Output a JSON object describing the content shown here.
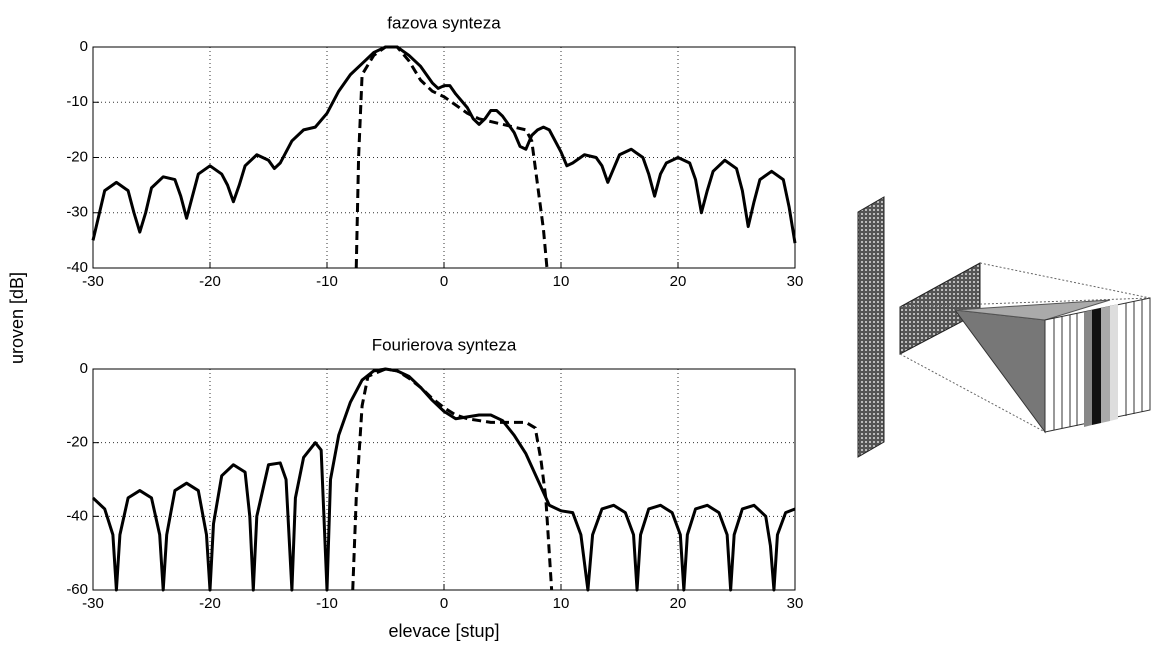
{
  "chart_data": [
    {
      "type": "line",
      "title": "fazova synteza",
      "ylabel": "uroven [dB]",
      "xlim": [
        -30,
        30
      ],
      "ylim": [
        -40,
        0
      ],
      "xticks": [
        -30,
        -20,
        -10,
        0,
        10,
        20,
        30
      ],
      "yticks": [
        -40,
        -30,
        -20,
        -10,
        0
      ],
      "grid": true,
      "series": [
        {
          "color": "#000000",
          "dash": false,
          "x": [
            -30,
            -29,
            -28,
            -27,
            -26.5,
            -26,
            -25.5,
            -25,
            -24,
            -23,
            -22.5,
            -22,
            -21.5,
            -21,
            -20,
            -19,
            -18.5,
            -18,
            -17.5,
            -17,
            -16,
            -15,
            -14.5,
            -14,
            -13,
            -12,
            -11,
            -10,
            -9,
            -8,
            -7,
            -6,
            -5,
            -4,
            -3,
            -2,
            -1,
            -0.5,
            0,
            0.5,
            1,
            2,
            2.5,
            3,
            3.5,
            4,
            4.5,
            5,
            6,
            6.5,
            7,
            7.5,
            8,
            8.5,
            9,
            10,
            10.5,
            11,
            12,
            13,
            13.5,
            14,
            14.5,
            15,
            16,
            17,
            17.5,
            18,
            18.5,
            19,
            20,
            21,
            21.5,
            22,
            22.5,
            23,
            24,
            25,
            25.5,
            26,
            26.5,
            27,
            28,
            29,
            29.5,
            30
          ],
          "values": [
            -35,
            -26,
            -24.5,
            -26,
            -30,
            -33.5,
            -30,
            -25.5,
            -23.5,
            -24,
            -27,
            -31,
            -27,
            -23,
            -21.5,
            -23,
            -25,
            -28,
            -25,
            -21.5,
            -19.5,
            -20.5,
            -22,
            -21,
            -17,
            -15,
            -14.5,
            -12,
            -8,
            -5,
            -3,
            -1,
            0,
            0,
            -1.5,
            -3.5,
            -6.5,
            -7.5,
            -7,
            -7,
            -8.5,
            -11,
            -13,
            -14,
            -13,
            -11.5,
            -11.5,
            -12.5,
            -15.5,
            -18,
            -18.5,
            -16,
            -15,
            -14.5,
            -15,
            -19,
            -21.5,
            -21,
            -19.5,
            -20,
            -21.5,
            -24.5,
            -22,
            -19.5,
            -18.5,
            -20,
            -23,
            -27,
            -23,
            -21,
            -20,
            -21,
            -24,
            -30,
            -26,
            -22.5,
            -20.5,
            -22,
            -26,
            -32.5,
            -28,
            -24,
            -22.5,
            -24,
            -29,
            -35.5
          ]
        },
        {
          "color": "#000000",
          "dash": true,
          "x": [
            -7.5,
            -7.3,
            -7,
            -6,
            -5,
            -4,
            -3,
            -2,
            -1,
            0,
            1,
            2,
            3,
            4,
            5,
            6,
            7,
            7.5,
            8,
            8.5,
            8.8
          ],
          "values": [
            -40,
            -20,
            -5,
            -1.5,
            0,
            0,
            -2.5,
            -6,
            -8,
            -9,
            -10.5,
            -12,
            -13,
            -13.5,
            -14,
            -14.5,
            -15,
            -17,
            -25,
            -33,
            -40
          ]
        }
      ]
    },
    {
      "type": "line",
      "title": "Fourierova synteza",
      "xlabel": "elevace [stup]",
      "xlim": [
        -30,
        30
      ],
      "ylim": [
        -60,
        0
      ],
      "xticks": [
        -30,
        -20,
        -10,
        0,
        10,
        20,
        30
      ],
      "yticks": [
        -60,
        -40,
        -20,
        0
      ],
      "grid": true,
      "series": [
        {
          "color": "#000000",
          "dash": false,
          "x": [
            -30,
            -29,
            -28.3,
            -28,
            -27.7,
            -27,
            -26,
            -25,
            -24.3,
            -24,
            -23.7,
            -23,
            -22,
            -21,
            -20.3,
            -20,
            -19.7,
            -19,
            -18,
            -17,
            -16.6,
            -16.3,
            -16,
            -15,
            -14,
            -13.5,
            -13,
            -12.7,
            -12,
            -11,
            -10.5,
            -10,
            -9.7,
            -9,
            -8,
            -7,
            -6,
            -5,
            -4,
            -3,
            -2,
            -1,
            0,
            1,
            2,
            3,
            4,
            5,
            6,
            7,
            8,
            9,
            10,
            11,
            11.7,
            12.3,
            12.7,
            13.5,
            14.5,
            15.5,
            16.2,
            16.5,
            16.8,
            17.5,
            18.5,
            19.5,
            20.2,
            20.5,
            20.8,
            21.5,
            22.5,
            23.5,
            24.2,
            24.5,
            24.8,
            25.5,
            26.5,
            27.5,
            27.9,
            28.2,
            28.5,
            29.2,
            30
          ],
          "values": [
            -35,
            -38,
            -45,
            -60,
            -45,
            -35,
            -33,
            -35,
            -45,
            -60,
            -45,
            -33,
            -31,
            -33,
            -45,
            -60,
            -42,
            -29,
            -26,
            -28,
            -40,
            -60,
            -40,
            -26,
            -25.5,
            -30,
            -60,
            -35,
            -24,
            -20,
            -22,
            -60,
            -30,
            -18,
            -9,
            -3,
            -0.5,
            0,
            -0.5,
            -2,
            -5,
            -8.5,
            -11.5,
            -13.5,
            -13,
            -12.5,
            -12.5,
            -14,
            -18,
            -23,
            -30,
            -37,
            -38.5,
            -39,
            -45,
            -60,
            -45,
            -38,
            -37,
            -39,
            -45,
            -60,
            -45,
            -38,
            -37,
            -39,
            -45,
            -60,
            -45,
            -38,
            -37,
            -39,
            -45,
            -60,
            -45,
            -38,
            -37,
            -40,
            -48,
            -60,
            -45,
            -39,
            -38
          ]
        },
        {
          "color": "#000000",
          "dash": true,
          "x": [
            -7.8,
            -7.5,
            -7,
            -6.5,
            -5,
            -4,
            -3,
            -2,
            -1,
            0,
            1,
            2,
            3,
            4,
            5,
            6,
            7,
            7.8,
            8.3,
            8.7,
            9,
            9.2
          ],
          "values": [
            -60,
            -35,
            -10,
            -2,
            0,
            -0.5,
            -2.5,
            -5,
            -8,
            -10.5,
            -12.5,
            -13.5,
            -14,
            -14.5,
            -14.5,
            -14.5,
            -14.5,
            -16,
            -25,
            -35,
            -50,
            -60
          ]
        }
      ]
    }
  ]
}
